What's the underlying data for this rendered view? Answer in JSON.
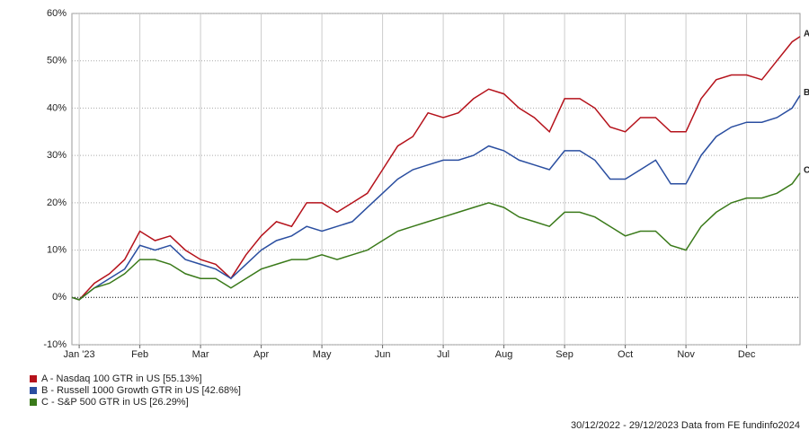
{
  "chart_data": {
    "type": "line",
    "x": [
      -0.12,
      0,
      0.25,
      0.5,
      0.75,
      1,
      1.25,
      1.5,
      1.75,
      2,
      2.25,
      2.5,
      2.75,
      3,
      3.25,
      3.5,
      3.75,
      4,
      4.25,
      4.5,
      4.75,
      5,
      5.25,
      5.5,
      5.75,
      6,
      6.25,
      6.5,
      6.75,
      7,
      7.25,
      7.5,
      7.75,
      8,
      8.25,
      8.5,
      8.75,
      9,
      9.25,
      9.5,
      9.75,
      10,
      10.25,
      10.5,
      10.75,
      11,
      11.25,
      11.5,
      11.75,
      11.88
    ],
    "xlim": [
      -0.12,
      11.88
    ],
    "xticks": [
      {
        "value": 0,
        "label": "Jan '23"
      },
      {
        "value": 1,
        "label": "Feb"
      },
      {
        "value": 2,
        "label": "Mar"
      },
      {
        "value": 3,
        "label": "Apr"
      },
      {
        "value": 4,
        "label": "May"
      },
      {
        "value": 5,
        "label": "Jun"
      },
      {
        "value": 6,
        "label": "Jul"
      },
      {
        "value": 7,
        "label": "Aug"
      },
      {
        "value": 8,
        "label": "Sep"
      },
      {
        "value": 9,
        "label": "Oct"
      },
      {
        "value": 10,
        "label": "Nov"
      },
      {
        "value": 11,
        "label": "Dec"
      }
    ],
    "ylim": [
      -10,
      60
    ],
    "yticks": [
      {
        "value": -10,
        "label": "-10%"
      },
      {
        "value": 0,
        "label": "0%"
      },
      {
        "value": 10,
        "label": "10%"
      },
      {
        "value": 20,
        "label": "20%"
      },
      {
        "value": 30,
        "label": "30%"
      },
      {
        "value": 40,
        "label": "40%"
      },
      {
        "value": 50,
        "label": "50%"
      },
      {
        "value": 60,
        "label": "60%"
      }
    ],
    "grid": true,
    "series": [
      {
        "name": "A - Nasdaq 100 GTR in US [55.13%]",
        "label": "A",
        "color": "#b5121b",
        "values": [
          0,
          -0.5,
          3,
          5,
          8,
          14,
          12,
          13,
          10,
          8,
          7,
          4,
          9,
          13,
          16,
          15,
          20,
          20,
          18,
          20,
          22,
          27,
          32,
          34,
          39,
          38,
          39,
          42,
          44,
          43,
          40,
          38,
          35,
          42,
          42,
          40,
          36,
          35,
          38,
          38,
          35,
          35,
          42,
          46,
          47,
          47,
          46,
          50,
          54,
          55.13
        ]
      },
      {
        "name": "B - Russell 1000 Growth GTR in US [42.68%]",
        "label": "B",
        "color": "#2a4ea0",
        "values": [
          0,
          -0.5,
          2,
          4,
          6,
          11,
          10,
          11,
          8,
          7,
          6,
          4,
          7,
          10,
          12,
          13,
          15,
          14,
          15,
          16,
          19,
          22,
          25,
          27,
          28,
          29,
          29,
          30,
          32,
          31,
          29,
          28,
          27,
          31,
          31,
          29,
          25,
          25,
          27,
          29,
          24,
          24,
          30,
          34,
          36,
          37,
          37,
          38,
          40,
          42.68
        ]
      },
      {
        "name": "C - S&P 500 GTR in US [26.29%]",
        "label": "C",
        "color": "#3a7a1a",
        "values": [
          0,
          -0.5,
          2,
          3,
          5,
          8,
          8,
          7,
          5,
          4,
          4,
          2,
          4,
          6,
          7,
          8,
          8,
          9,
          8,
          9,
          10,
          12,
          14,
          15,
          16,
          17,
          18,
          19,
          20,
          19,
          17,
          16,
          15,
          18,
          18,
          17,
          15,
          13,
          14,
          14,
          11,
          10,
          15,
          18,
          20,
          21,
          21,
          22,
          24,
          26.29
        ]
      }
    ],
    "footer": "30/12/2022 - 29/12/2023 Data from FE fundinfo2024"
  }
}
